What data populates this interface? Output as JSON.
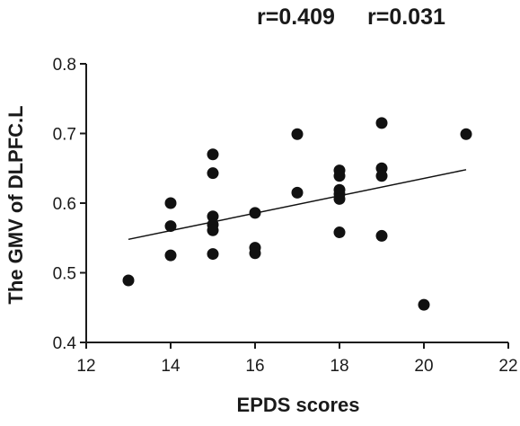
{
  "chart_data": {
    "type": "scatter",
    "title": "",
    "annotations": [
      "r=0.409",
      "r=0.031"
    ],
    "xlabel": "EPDS scores",
    "ylabel": "The GMV of DLPFC.L",
    "xlim": [
      12,
      22
    ],
    "ylim": [
      0.4,
      0.8
    ],
    "xticks": [
      12,
      14,
      16,
      18,
      20,
      22
    ],
    "xtick_labels": [
      "12",
      "14",
      "16",
      "18",
      "20",
      "22"
    ],
    "yticks": [
      0.4,
      0.5,
      0.6,
      0.7,
      0.8
    ],
    "ytick_labels": [
      "0.4",
      "0.5",
      "0.6",
      "0.7",
      "0.8"
    ],
    "grid": false,
    "series": [
      {
        "points": [
          {
            "x": 13,
            "y": 0.489
          },
          {
            "x": 14,
            "y": 0.6
          },
          {
            "x": 14,
            "y": 0.567
          },
          {
            "x": 14,
            "y": 0.525
          },
          {
            "x": 15,
            "y": 0.67
          },
          {
            "x": 15,
            "y": 0.643
          },
          {
            "x": 15,
            "y": 0.581
          },
          {
            "x": 15,
            "y": 0.569
          },
          {
            "x": 15,
            "y": 0.561
          },
          {
            "x": 15,
            "y": 0.527
          },
          {
            "x": 16,
            "y": 0.586
          },
          {
            "x": 16,
            "y": 0.536
          },
          {
            "x": 16,
            "y": 0.528
          },
          {
            "x": 17,
            "y": 0.699
          },
          {
            "x": 17,
            "y": 0.615
          },
          {
            "x": 18,
            "y": 0.647
          },
          {
            "x": 18,
            "y": 0.639
          },
          {
            "x": 18,
            "y": 0.619
          },
          {
            "x": 18,
            "y": 0.613
          },
          {
            "x": 18,
            "y": 0.606
          },
          {
            "x": 18,
            "y": 0.558
          },
          {
            "x": 19,
            "y": 0.715
          },
          {
            "x": 19,
            "y": 0.65
          },
          {
            "x": 19,
            "y": 0.639
          },
          {
            "x": 19,
            "y": 0.553
          },
          {
            "x": 20,
            "y": 0.454
          },
          {
            "x": 21,
            "y": 0.699
          }
        ],
        "color": "#111111"
      }
    ],
    "trendline": {
      "x": [
        13,
        21
      ],
      "y": [
        0.548,
        0.648
      ],
      "color": "#111111"
    }
  }
}
